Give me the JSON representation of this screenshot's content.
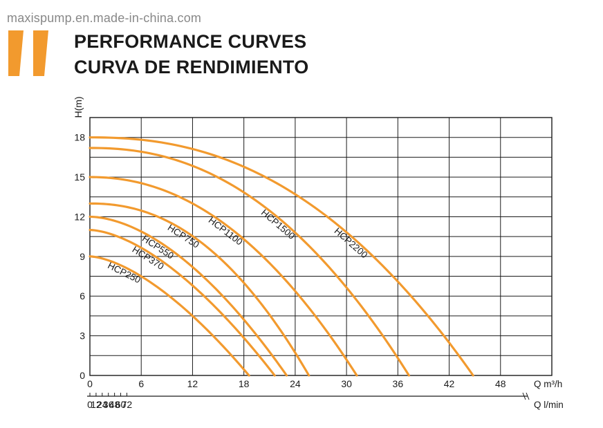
{
  "watermark": "maxispump.en.made-in-china.com",
  "title_lines": [
    "PERFORMANCE CURVES",
    "CURVA DE RENDIMIENTO"
  ],
  "colors": {
    "curve": "#F29A2E",
    "accent": "#F29A2E",
    "grid": "#1a1a1a",
    "text": "#1a1a1a"
  },
  "chart_data": {
    "type": "line",
    "title": "PERFORMANCE CURVES / CURVA DE RENDIMIENTO",
    "ylabel": "H(m)",
    "xlabel": "Q m³/h",
    "x2label": "Q l/min",
    "xlim": [
      0,
      54
    ],
    "ylim": [
      0,
      19.5
    ],
    "x_ticks": [
      0,
      6,
      12,
      18,
      24,
      30,
      36,
      42,
      48
    ],
    "x_tick_labels": [
      "0",
      "6",
      "12",
      "18",
      "24",
      "30",
      "36",
      "42",
      "48"
    ],
    "y_ticks": [
      0,
      3,
      6,
      9,
      12,
      15,
      18
    ],
    "y_tick_labels": [
      "0",
      "3",
      "6",
      "9",
      "12",
      "15",
      "18"
    ],
    "x2_ticks": [
      0,
      12,
      24,
      36,
      48,
      60,
      72
    ],
    "x2_tick_labels": [
      "0",
      "12",
      "24",
      "36",
      "48",
      "60",
      "72"
    ],
    "grid": true,
    "series": [
      {
        "name": "HCP250",
        "h0": 9.0,
        "qmax": 18.6,
        "points": [
          [
            0,
            9.0
          ],
          [
            6,
            7.0
          ],
          [
            12,
            4.5
          ],
          [
            18,
            0.8
          ],
          [
            18.6,
            0
          ]
        ]
      },
      {
        "name": "HCP370",
        "h0": 11.0,
        "qmax": 21.6,
        "points": [
          [
            0,
            11.0
          ],
          [
            6,
            9.2
          ],
          [
            12,
            6.8
          ],
          [
            18,
            3.2
          ],
          [
            21.6,
            0
          ]
        ]
      },
      {
        "name": "HCP550",
        "h0": 12.0,
        "qmax": 23.0,
        "points": [
          [
            0,
            12.0
          ],
          [
            6,
            10.4
          ],
          [
            12,
            8.2
          ],
          [
            18,
            5.0
          ],
          [
            23.0,
            0
          ]
        ]
      },
      {
        "name": "HCP750",
        "h0": 13.0,
        "qmax": 25.6,
        "points": [
          [
            0,
            13.0
          ],
          [
            6,
            11.7
          ],
          [
            12,
            9.7
          ],
          [
            18,
            7.0
          ],
          [
            24,
            2.2
          ],
          [
            25.6,
            0
          ]
        ]
      },
      {
        "name": "HCP1100",
        "h0": 15.0,
        "qmax": 31.2,
        "points": [
          [
            0,
            15.0
          ],
          [
            6,
            14.0
          ],
          [
            12,
            12.5
          ],
          [
            18,
            10.3
          ],
          [
            24,
            7.2
          ],
          [
            30,
            2.0
          ],
          [
            31.2,
            0
          ]
        ]
      },
      {
        "name": "HCP1500",
        "h0": 17.2,
        "qmax": 37.3,
        "points": [
          [
            0,
            17.2
          ],
          [
            6,
            16.3
          ],
          [
            12,
            15.0
          ],
          [
            18,
            13.2
          ],
          [
            24,
            10.8
          ],
          [
            30,
            7.2
          ],
          [
            36,
            1.8
          ],
          [
            37.3,
            0
          ]
        ]
      },
      {
        "name": "HCP2200",
        "h0": 18.0,
        "qmax": 44.8,
        "points": [
          [
            0,
            18.0
          ],
          [
            6,
            17.6
          ],
          [
            12,
            16.8
          ],
          [
            18,
            15.5
          ],
          [
            24,
            13.7
          ],
          [
            30,
            11.3
          ],
          [
            36,
            8.2
          ],
          [
            42,
            3.5
          ],
          [
            44.8,
            0
          ]
        ]
      }
    ]
  }
}
